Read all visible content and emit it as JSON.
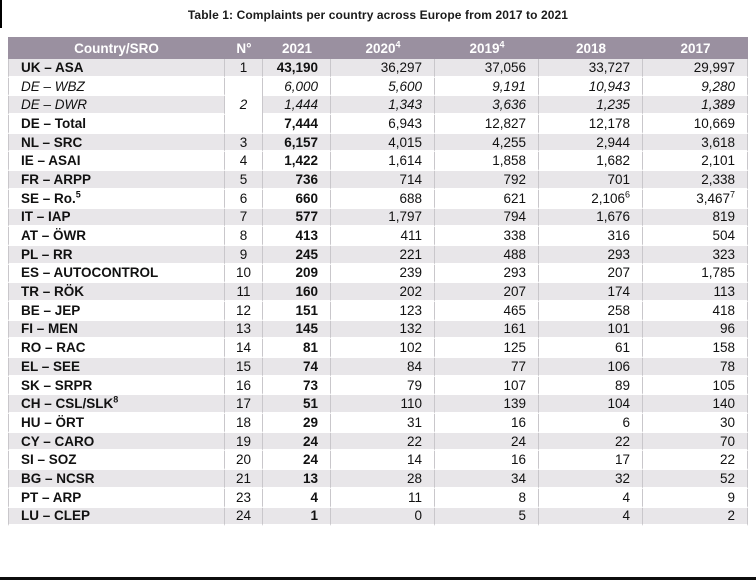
{
  "title": "Table 1: Complaints per country across Europe from 2017 to 2021",
  "colors": {
    "header_bg": "#9a90a0",
    "header_text": "#ffffff",
    "row_alt_bg": "#e8e6e9",
    "grid_line": "#c9c7cb",
    "bottom_rule": "#0d0d0d"
  },
  "table": {
    "columns": [
      {
        "label": "Country/SRO",
        "sup": ""
      },
      {
        "label": "N°",
        "sup": ""
      },
      {
        "label": "2021",
        "sup": ""
      },
      {
        "label": "2020",
        "sup": "4"
      },
      {
        "label": "2019",
        "sup": "4"
      },
      {
        "label": "2018",
        "sup": ""
      },
      {
        "label": "2017",
        "sup": ""
      }
    ],
    "rows": [
      {
        "country": "UK – ASA",
        "n": "1",
        "style": "default",
        "values": [
          {
            "v": "43,190"
          },
          {
            "v": "36,297"
          },
          {
            "v": "37,056"
          },
          {
            "v": "33,727"
          },
          {
            "v": "29,997"
          }
        ]
      },
      {
        "country": "DE – WBZ",
        "n": "2",
        "n_rowspan": 3,
        "style": "italic",
        "values": [
          {
            "v": "6,000"
          },
          {
            "v": "5,600"
          },
          {
            "v": "9,191"
          },
          {
            "v": "10,943"
          },
          {
            "v": "9,280"
          }
        ]
      },
      {
        "country": "DE – DWR",
        "n": null,
        "style": "italic",
        "values": [
          {
            "v": "1,444"
          },
          {
            "v": "1,343"
          },
          {
            "v": "3,636"
          },
          {
            "v": "1,235"
          },
          {
            "v": "1,389"
          }
        ]
      },
      {
        "country": "DE – Total",
        "n": null,
        "style": "default",
        "values": [
          {
            "v": "7,444"
          },
          {
            "v": "6,943"
          },
          {
            "v": "12,827"
          },
          {
            "v": "12,178"
          },
          {
            "v": "10,669"
          }
        ]
      },
      {
        "country": "NL – SRC",
        "n": "3",
        "style": "default",
        "values": [
          {
            "v": "6,157"
          },
          {
            "v": "4,015"
          },
          {
            "v": "4,255"
          },
          {
            "v": "2,944"
          },
          {
            "v": "3,618"
          }
        ]
      },
      {
        "country": "IE – ASAI",
        "n": "4",
        "style": "default",
        "values": [
          {
            "v": "1,422"
          },
          {
            "v": "1,614"
          },
          {
            "v": "1,858"
          },
          {
            "v": "1,682"
          },
          {
            "v": "2,101"
          }
        ]
      },
      {
        "country": "FR – ARPP",
        "n": "5",
        "style": "default",
        "values": [
          {
            "v": "736"
          },
          {
            "v": "714"
          },
          {
            "v": "792"
          },
          {
            "v": "701"
          },
          {
            "v": "2,338"
          }
        ]
      },
      {
        "country": "SE – Ro.",
        "country_sup": "5",
        "n": "6",
        "style": "default",
        "values": [
          {
            "v": "660"
          },
          {
            "v": "688"
          },
          {
            "v": "621"
          },
          {
            "v": "2,106",
            "sup": "6"
          },
          {
            "v": "3,467",
            "sup": "7"
          }
        ]
      },
      {
        "country": "IT – IAP",
        "n": "7",
        "style": "default",
        "values": [
          {
            "v": "577"
          },
          {
            "v": "1,797"
          },
          {
            "v": "794"
          },
          {
            "v": "1,676"
          },
          {
            "v": "819"
          }
        ]
      },
      {
        "country": "AT – ÖWR",
        "n": "8",
        "style": "default",
        "values": [
          {
            "v": "413"
          },
          {
            "v": "411"
          },
          {
            "v": "338"
          },
          {
            "v": "316"
          },
          {
            "v": "504"
          }
        ]
      },
      {
        "country": "PL – RR",
        "n": "9",
        "style": "default",
        "values": [
          {
            "v": "245"
          },
          {
            "v": "221"
          },
          {
            "v": "488"
          },
          {
            "v": "293"
          },
          {
            "v": "323"
          }
        ]
      },
      {
        "country": "ES – AUTOCONTROL",
        "n": "10",
        "style": "default",
        "values": [
          {
            "v": "209"
          },
          {
            "v": "239"
          },
          {
            "v": "293"
          },
          {
            "v": "207"
          },
          {
            "v": "1,785"
          }
        ]
      },
      {
        "country": "TR – RÖK",
        "n": "11",
        "style": "default",
        "values": [
          {
            "v": "160"
          },
          {
            "v": "202"
          },
          {
            "v": "207"
          },
          {
            "v": "174"
          },
          {
            "v": "113"
          }
        ]
      },
      {
        "country": "BE – JEP",
        "n": "12",
        "style": "default",
        "values": [
          {
            "v": "151"
          },
          {
            "v": "123"
          },
          {
            "v": "465"
          },
          {
            "v": "258"
          },
          {
            "v": "418"
          }
        ]
      },
      {
        "country": "FI – MEN",
        "n": "13",
        "style": "default",
        "values": [
          {
            "v": "145"
          },
          {
            "v": "132"
          },
          {
            "v": "161"
          },
          {
            "v": "101"
          },
          {
            "v": "96"
          }
        ]
      },
      {
        "country": "RO – RAC",
        "n": "14",
        "style": "default",
        "values": [
          {
            "v": "81"
          },
          {
            "v": "102"
          },
          {
            "v": "125"
          },
          {
            "v": "61"
          },
          {
            "v": "158"
          }
        ]
      },
      {
        "country": "EL – SEE",
        "n": "15",
        "style": "default",
        "values": [
          {
            "v": "74"
          },
          {
            "v": "84"
          },
          {
            "v": "77"
          },
          {
            "v": "106"
          },
          {
            "v": "78"
          }
        ]
      },
      {
        "country": "SK – SRPR",
        "n": "16",
        "style": "default",
        "values": [
          {
            "v": "73"
          },
          {
            "v": "79"
          },
          {
            "v": "107"
          },
          {
            "v": "89"
          },
          {
            "v": "105"
          }
        ]
      },
      {
        "country": "CH – CSL/SLK",
        "country_sup": "8",
        "n": "17",
        "style": "default",
        "values": [
          {
            "v": "51"
          },
          {
            "v": "110"
          },
          {
            "v": "139"
          },
          {
            "v": "104"
          },
          {
            "v": "140"
          }
        ]
      },
      {
        "country": "HU – ÖRT",
        "n": "18",
        "style": "default",
        "values": [
          {
            "v": "29"
          },
          {
            "v": "31"
          },
          {
            "v": "16"
          },
          {
            "v": "6"
          },
          {
            "v": "30"
          }
        ]
      },
      {
        "country": "CY – CARO",
        "n": "19",
        "style": "default",
        "values": [
          {
            "v": "24"
          },
          {
            "v": "22"
          },
          {
            "v": "24"
          },
          {
            "v": "22"
          },
          {
            "v": "70"
          }
        ]
      },
      {
        "country": "SI – SOZ",
        "n": "20",
        "style": "default",
        "values": [
          {
            "v": "24"
          },
          {
            "v": "14"
          },
          {
            "v": "16"
          },
          {
            "v": "17"
          },
          {
            "v": "22"
          }
        ]
      },
      {
        "country": "BG – NCSR",
        "n": "21",
        "style": "default",
        "values": [
          {
            "v": "13"
          },
          {
            "v": "28"
          },
          {
            "v": "34"
          },
          {
            "v": "32"
          },
          {
            "v": "52"
          }
        ]
      },
      {
        "country": "PT – ARP",
        "n": "23",
        "style": "default",
        "values": [
          {
            "v": "4"
          },
          {
            "v": "11"
          },
          {
            "v": "8"
          },
          {
            "v": "4"
          },
          {
            "v": "9"
          }
        ]
      },
      {
        "country": "LU – CLEP",
        "n": "24",
        "style": "default",
        "values": [
          {
            "v": "1"
          },
          {
            "v": "0"
          },
          {
            "v": "5"
          },
          {
            "v": "4"
          },
          {
            "v": "2"
          }
        ]
      }
    ]
  }
}
